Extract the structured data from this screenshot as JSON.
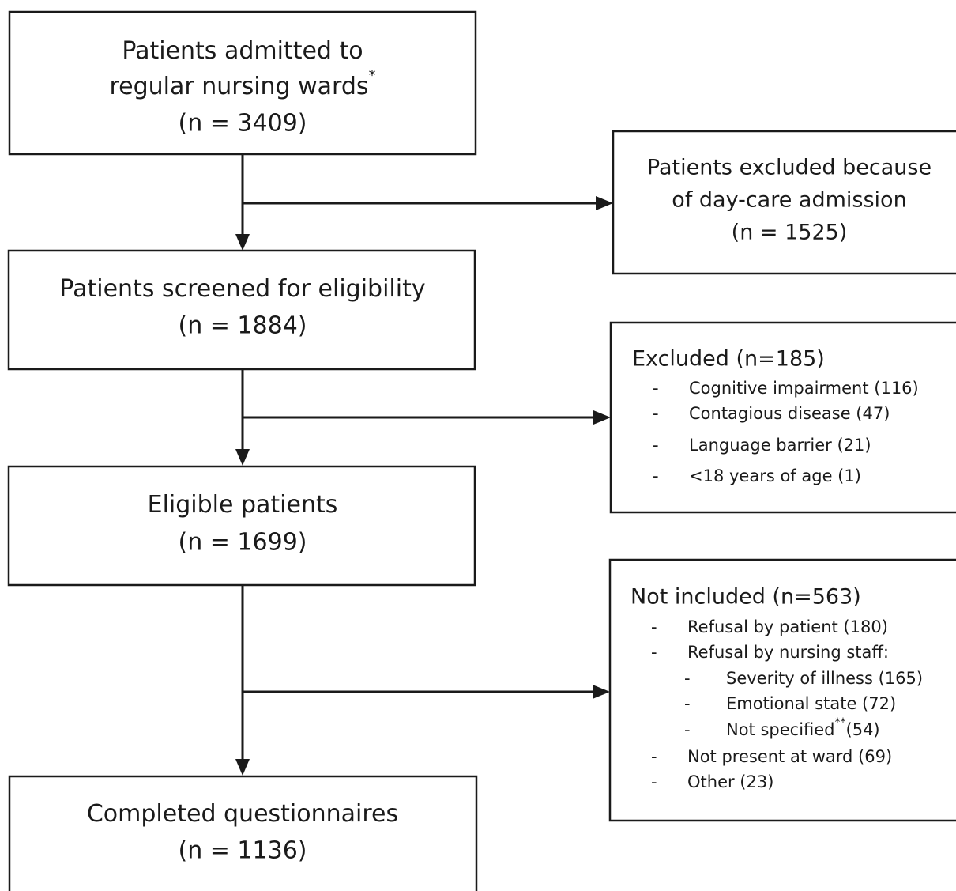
{
  "nodes": [
    {
      "lines": [
        "Patients admitted to",
        "regular nursing wards"
      ],
      "note": "*",
      "count": "(n = 3409)"
    },
    {
      "lines": [
        "Patients screened for eligibility"
      ],
      "count": "(n = 1884)"
    },
    {
      "lines": [
        "Eligible patients"
      ],
      "count": "(n = 1699)"
    },
    {
      "lines": [
        "Completed questionnaires"
      ],
      "count": "(n = 1136)"
    }
  ],
  "exclusions": [
    {
      "lines": [
        "Patients excluded because",
        "of day-care admission"
      ],
      "count": "(n = 1525)"
    },
    {
      "heading": "Excluded (n=185)",
      "bullet": "-",
      "items": [
        {
          "text": "Cognitive impairment (116)"
        },
        {
          "text": "Contagious disease (47)"
        },
        {
          "text": "Language barrier (21)"
        },
        {
          "text": "<18 years of age (1)"
        }
      ]
    },
    {
      "heading": "Not included (n=563)",
      "bullet": "-",
      "items": [
        {
          "text": "Refusal by patient (180)"
        },
        {
          "text": "Refusal by nursing staff:",
          "items": [
            {
              "text": "Severity of illness (165)"
            },
            {
              "text": "Emotional state (72)"
            },
            {
              "text": "Not specified",
              "note": "**",
              "after": "(54)"
            }
          ]
        },
        {
          "text": "Not present at ward (69)"
        },
        {
          "text": "Other (23)"
        }
      ]
    }
  ]
}
